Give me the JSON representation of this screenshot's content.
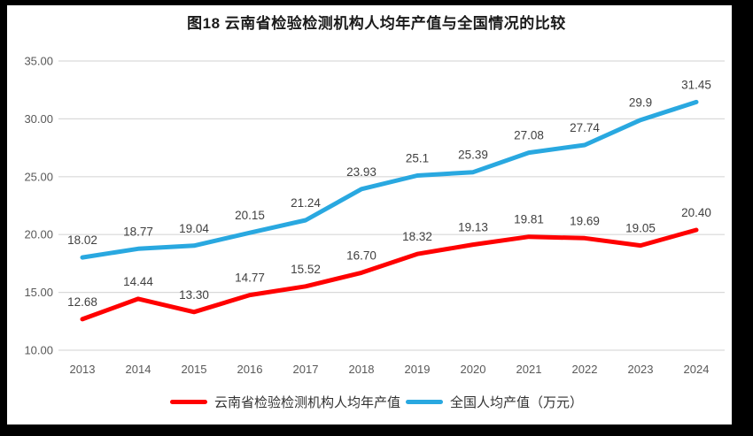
{
  "title": "图18 云南省检验检测机构人均年产值与全国情况的比较",
  "chart_data": {
    "type": "line",
    "x": [
      "2013",
      "2014",
      "2015",
      "2016",
      "2017",
      "2018",
      "2019",
      "2020",
      "2021",
      "2022",
      "2023",
      "2024"
    ],
    "series": [
      {
        "name": "云南省检验检测机构人均年产值",
        "color": "#FF0000",
        "values": [
          12.68,
          14.44,
          13.3,
          14.77,
          15.52,
          16.7,
          18.32,
          19.13,
          19.81,
          19.69,
          19.05,
          20.4
        ],
        "labels": [
          "12.68",
          "14.44",
          "13.30",
          "14.77",
          "15.52",
          "16.70",
          "18.32",
          "19.13",
          "19.81",
          "19.69",
          "19.05",
          "20.40"
        ]
      },
      {
        "name": "全国人均产值（万元）",
        "color": "#29A8E0",
        "values": [
          18.02,
          18.77,
          19.04,
          20.15,
          21.24,
          23.93,
          25.1,
          25.39,
          27.08,
          27.74,
          29.9,
          31.45
        ],
        "labels": [
          "18.02",
          "18.77",
          "19.04",
          "20.15",
          "21.24",
          "23.93",
          "25.1",
          "25.39",
          "27.08",
          "27.74",
          "29.9",
          "31.45"
        ]
      }
    ],
    "ylim": [
      10,
      35
    ],
    "ytick_labels": [
      "10.00",
      "15.00",
      "20.00",
      "25.00",
      "30.00",
      "35.00"
    ],
    "ytick_values": [
      10,
      15,
      20,
      25,
      30,
      35
    ],
    "grid": true,
    "legend_position": "bottom"
  },
  "colors": {
    "background": "#000000",
    "panel": "#FFFFFF",
    "gridline": "#D9D9D9",
    "axis_text": "#595959",
    "data_label_text": "#404040",
    "series_red": "#FF0000",
    "series_blue": "#29A8E0"
  }
}
